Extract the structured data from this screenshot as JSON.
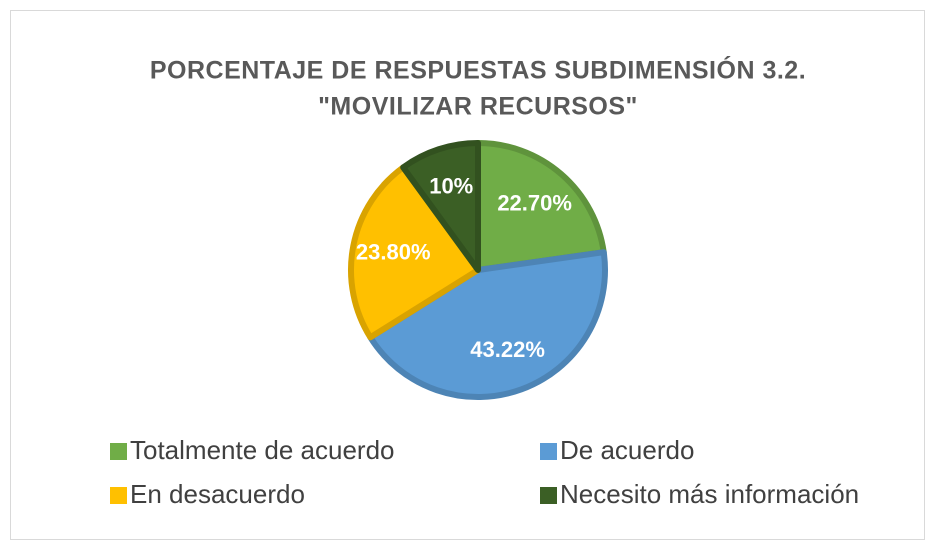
{
  "chart_data": {
    "type": "pie",
    "title": [
      "PORCENTAJE DE RESPUESTAS SUBDIMENSIÓN 3.2.",
      "\"MOVILIZAR RECURSOS\""
    ],
    "categories": [
      "Totalmente de acuerdo",
      "De acuerdo",
      "En desacuerdo",
      "Necesito más información"
    ],
    "values": [
      22.7,
      43.22,
      23.8,
      10
    ],
    "value_labels": [
      "22.70%",
      "43.22%",
      "23.80%",
      "10%"
    ],
    "colors": [
      "#70ad47",
      "#5b9bd5",
      "#ffc000",
      "#3b5f25"
    ],
    "legend": "bottom"
  }
}
